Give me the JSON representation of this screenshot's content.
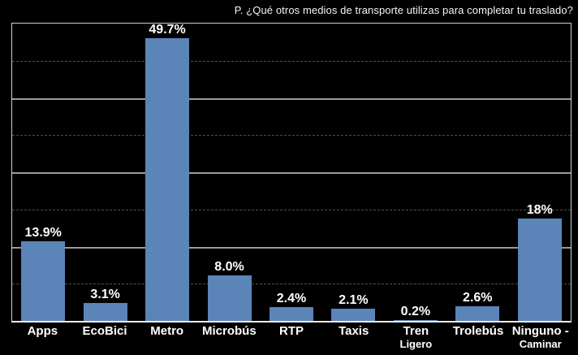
{
  "title": "P. ¿Qué otros medios de transporte utilizas para completar tu traslado?",
  "chart_data": {
    "type": "bar",
    "title": "P. ¿Qué otros medios de transporte utilizas para completar tu traslado?",
    "categories": [
      "Apps",
      "EcoBici",
      "Metro",
      "Microbús",
      "RTP",
      "Taxis",
      "Tren Ligero",
      "Trolebús",
      "Ninguno - Caminar"
    ],
    "values": [
      13.9,
      3.1,
      49.7,
      8.0,
      2.4,
      2.1,
      0.2,
      2.6,
      18
    ],
    "value_labels": [
      "13.9%",
      "3.1%",
      "49.7%",
      "8.0%",
      "2.4%",
      "2.1%",
      "0.2%",
      "2.6%",
      "18%"
    ],
    "xlabel": "",
    "ylabel": "",
    "ylim": [
      0,
      52.1
    ],
    "grid": "horizontal lines only, 8 equal intervals, alternating dashed (minor) and solid (major), no y-axis tick labels",
    "legend": "none",
    "colors": {
      "bar": "#5b84b8",
      "background": "#000000",
      "text": "#ffffff",
      "grid_dashed": "#4e4e4e",
      "grid_solid": "#9b9b9b",
      "plot_border": "#cfcfcf"
    }
  }
}
